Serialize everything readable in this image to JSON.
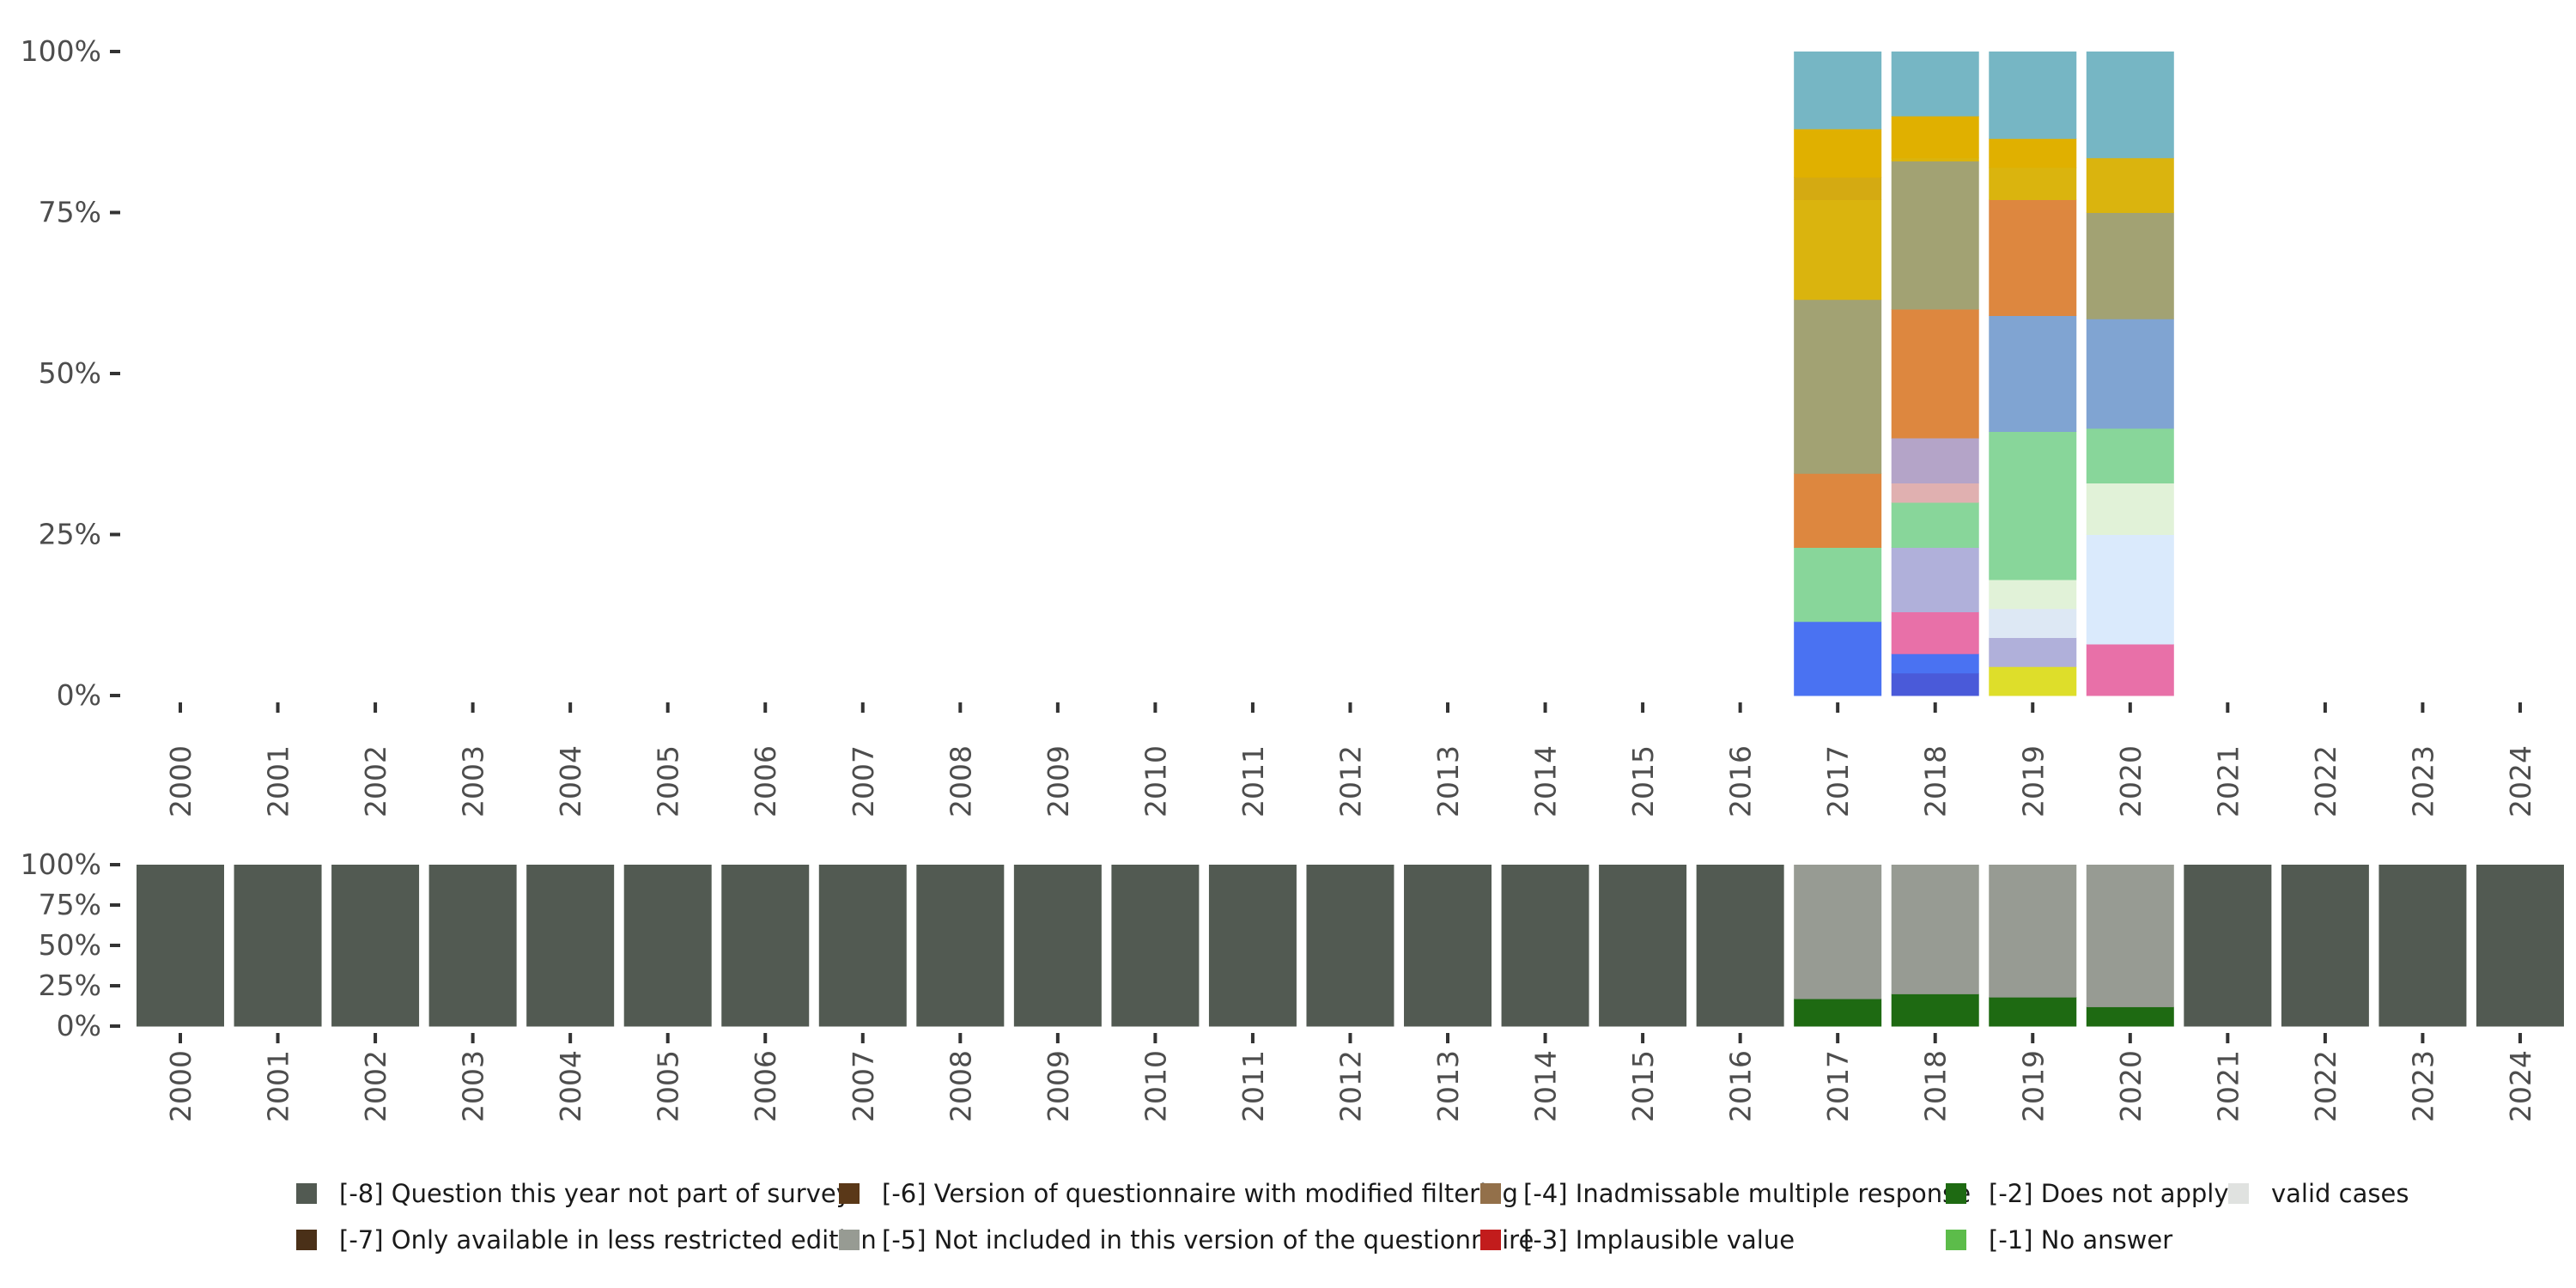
{
  "chart_data": [
    {
      "type": "bar",
      "stacked": true,
      "normalized": true,
      "title": "",
      "xlabel": "",
      "ylabel": "",
      "ylim": [
        0,
        100
      ],
      "y_ticks": [
        "0%",
        "25%",
        "50%",
        "75%",
        "100%"
      ],
      "categories": [
        "2000",
        "2001",
        "2002",
        "2003",
        "2004",
        "2005",
        "2006",
        "2007",
        "2008",
        "2009",
        "2010",
        "2011",
        "2012",
        "2013",
        "2014",
        "2015",
        "2016",
        "2017",
        "2018",
        "2019",
        "2020",
        "2021",
        "2022",
        "2023",
        "2024"
      ],
      "bars": {
        "2017": [
          {
            "color": "#4a72f2",
            "value": 11.5
          },
          {
            "color": "#88d69a",
            "value": 11.5
          },
          {
            "color": "#dd873f",
            "value": 11.5
          },
          {
            "color": "#a2a273",
            "value": 27.0
          },
          {
            "color": "#dab40e",
            "value": 15.5
          },
          {
            "color": "#d4aa12",
            "value": 3.5
          },
          {
            "color": "#e0b000",
            "value": 7.5
          },
          {
            "color": "#76b6c4",
            "value": 12.0
          }
        ],
        "2018": [
          {
            "color": "#4a5ad9",
            "value": 3.5
          },
          {
            "color": "#4a72f2",
            "value": 3.0
          },
          {
            "color": "#e870a8",
            "value": 6.5
          },
          {
            "color": "#b0b0da",
            "value": 10.0
          },
          {
            "color": "#88d69a",
            "value": 7.0
          },
          {
            "color": "#e0b0b0",
            "value": 3.0
          },
          {
            "color": "#b4a4c8",
            "value": 7.0
          },
          {
            "color": "#dd873f",
            "value": 20.0
          },
          {
            "color": "#a2a273",
            "value": 23.0
          },
          {
            "color": "#dab40e",
            "value": 0.5
          },
          {
            "color": "#e0b000",
            "value": 6.5
          },
          {
            "color": "#76b6c4",
            "value": 10.0
          }
        ],
        "2019": [
          {
            "color": "#dede2a",
            "value": 4.5
          },
          {
            "color": "#b0b0da",
            "value": 4.5
          },
          {
            "color": "#dde8f4",
            "value": 4.5
          },
          {
            "color": "#e1f2d8",
            "value": 4.5
          },
          {
            "color": "#88d69a",
            "value": 23.0
          },
          {
            "color": "#80a4d2",
            "value": 18.0
          },
          {
            "color": "#dd873f",
            "value": 18.0
          },
          {
            "color": "#dab40e",
            "value": 5.0
          },
          {
            "color": "#e0b000",
            "value": 4.5
          },
          {
            "color": "#76b6c4",
            "value": 13.5
          }
        ],
        "2020": [
          {
            "color": "#e870a8",
            "value": 8.0
          },
          {
            "color": "#daeafc",
            "value": 17.0
          },
          {
            "color": "#e1f2d8",
            "value": 8.0
          },
          {
            "color": "#88d69a",
            "value": 8.5
          },
          {
            "color": "#80a4d2",
            "value": 17.0
          },
          {
            "color": "#a2a273",
            "value": 16.5
          },
          {
            "color": "#dab40e",
            "value": 8.5
          },
          {
            "color": "#76b6c4",
            "value": 16.5
          }
        ]
      }
    },
    {
      "type": "bar",
      "stacked": true,
      "normalized": true,
      "title": "",
      "xlabel": "",
      "ylabel": "",
      "ylim": [
        0,
        100
      ],
      "y_ticks": [
        "0%",
        "25%",
        "50%",
        "75%",
        "100%"
      ],
      "categories": [
        "2000",
        "2001",
        "2002",
        "2003",
        "2004",
        "2005",
        "2006",
        "2007",
        "2008",
        "2009",
        "2010",
        "2011",
        "2012",
        "2013",
        "2014",
        "2015",
        "2016",
        "2017",
        "2018",
        "2019",
        "2020",
        "2021",
        "2022",
        "2023",
        "2024"
      ],
      "series": [
        {
          "name": "[-2] Does not apply",
          "color": "#1e6a12",
          "values": [
            0,
            0,
            0,
            0,
            0,
            0,
            0,
            0,
            0,
            0,
            0,
            0,
            0,
            0,
            0,
            0,
            0,
            17,
            20,
            18,
            12,
            0,
            0,
            0,
            0
          ]
        },
        {
          "name": "[-5] Not included in this version of the questionnaire",
          "color": "#979b93",
          "values": [
            0,
            0,
            0,
            0,
            0,
            0,
            0,
            0,
            0,
            0,
            0,
            0,
            0,
            0,
            0,
            0,
            0,
            83,
            80,
            82,
            88,
            0,
            0,
            0,
            0
          ]
        },
        {
          "name": "[-8] Question this year not part of survey",
          "color": "#525a52",
          "values": [
            100,
            100,
            100,
            100,
            100,
            100,
            100,
            100,
            100,
            100,
            100,
            100,
            100,
            100,
            100,
            100,
            100,
            0,
            0,
            0,
            0,
            100,
            100,
            100,
            100
          ]
        }
      ]
    }
  ],
  "legend": {
    "placement": "bottom",
    "rows": [
      [
        {
          "label": "[-8] Question this year not part of survey",
          "color": "#525a52"
        },
        {
          "label": "[-6] Version of questionnaire with modified filtering",
          "color": "#5a3818"
        },
        {
          "label": "[-4] Inadmissable multiple response",
          "color": "#93704a"
        },
        {
          "label": "[-2] Does not apply",
          "color": "#1e6a12"
        },
        {
          "label": "valid cases",
          "color": "#e0e2e0"
        }
      ],
      [
        {
          "label": "[-7] Only available in less restricted edition",
          "color": "#4a3018"
        },
        {
          "label": "[-5] Not included in this version of the questionnaire",
          "color": "#979b93"
        },
        {
          "label": "[-3] Implausible value",
          "color": "#c21c1c"
        },
        {
          "label": "[-1] No answer",
          "color": "#5cbc4a"
        }
      ]
    ]
  }
}
